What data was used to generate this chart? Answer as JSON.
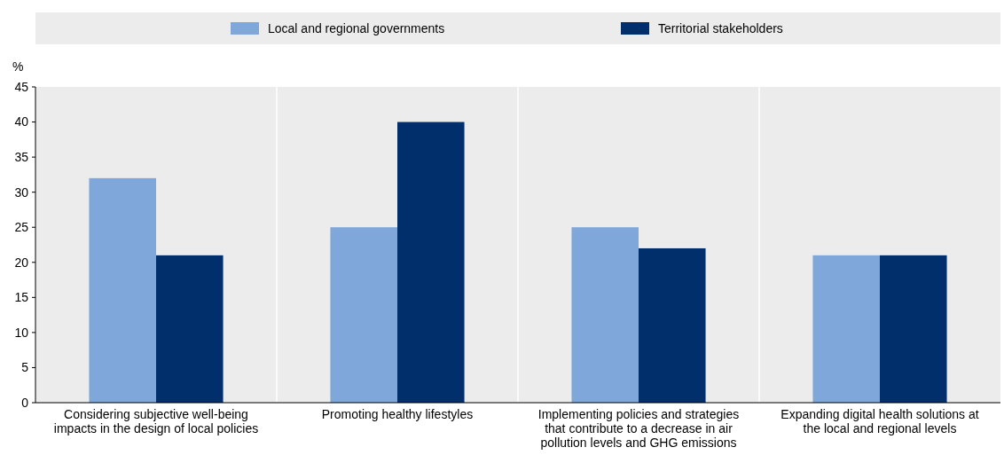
{
  "chart_data": {
    "type": "bar",
    "ylabel": "%",
    "categories": [
      "Considering subjective well-being impacts in the design of local policies",
      "Promoting healthy lifestyles",
      "Implementing policies and strategies that contribute to a decrease in air pollution levels and GHG emissions",
      "Expanding digital health solutions at the local and regional levels"
    ],
    "series": [
      {
        "name": "Local and regional governments",
        "color": "#7fa7d9",
        "values": [
          32,
          25,
          25,
          21
        ]
      },
      {
        "name": "Territorial stakeholders",
        "color": "#002f6c",
        "values": [
          21,
          40,
          22,
          21
        ]
      }
    ],
    "ylim": [
      0,
      45
    ],
    "yticks": [
      0,
      5,
      10,
      15,
      20,
      25,
      30,
      35,
      40,
      45
    ],
    "grid": false,
    "legend": "top"
  }
}
